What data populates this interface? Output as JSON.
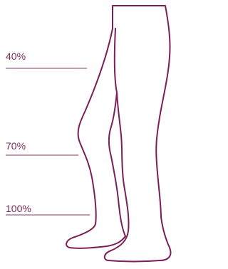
{
  "labels": [
    "40%",
    "70%",
    "100%"
  ]
}
